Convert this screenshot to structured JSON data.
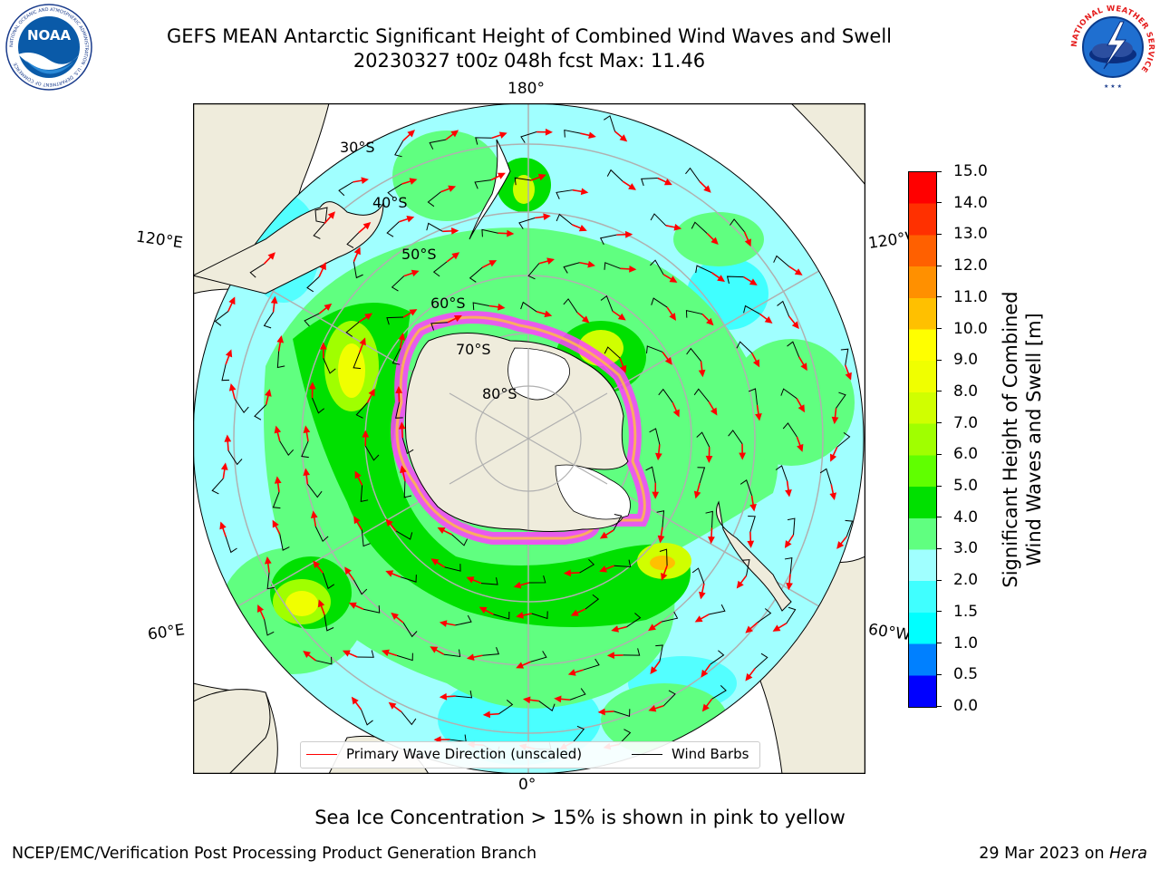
{
  "title_line1": "GEFS MEAN Antarctic Significant Height of Combined Wind Waves and Swell",
  "title_line2": "20230327 t00z 048h fcst   Max: 11.46",
  "logos": {
    "left_text": "NOAA",
    "left_ring": "NATIONAL OCEANIC AND ATMOSPHERIC ADMINISTRATION · U.S. DEPARTMENT OF COMMERCE",
    "right_ring": "NATIONAL WEATHER SERVICE"
  },
  "map": {
    "lon_labels": {
      "top": "180°",
      "bottom": "0°",
      "upper_left": "120°E",
      "lower_left": "60°E",
      "upper_right": "120°W",
      "lower_right": "60°W"
    },
    "lat_labels": [
      "30°S",
      "40°S",
      "50°S",
      "60°S",
      "70°S",
      "80°S"
    ]
  },
  "legend": {
    "wave": "Primary Wave Direction (unscaled)",
    "barb": "Wind Barbs",
    "wave_color": "#ff0000",
    "barb_color": "#000000"
  },
  "colorbar": {
    "label_line1": "Significant Height of Combined",
    "label_line2": "Wind Waves and Swell [m]",
    "ticks": [
      "15.0",
      "14.0",
      "13.0",
      "12.0",
      "11.0",
      "10.0",
      "9.0",
      "8.0",
      "7.0",
      "6.0",
      "5.0",
      "4.0",
      "3.0",
      "2.0",
      "1.5",
      "1.0",
      "0.5",
      "0.0"
    ],
    "colors_bottom_to_top": [
      "#0000ff",
      "#0080ff",
      "#00ffff",
      "#40ffff",
      "#a0ffff",
      "#60ff80",
      "#00e000",
      "#60ff00",
      "#a0ff00",
      "#d0ff00",
      "#f0ff00",
      "#ffff00",
      "#ffc000",
      "#ff9000",
      "#ff6000",
      "#ff3000",
      "#ff0000"
    ]
  },
  "ice_note": "Sea Ice Concentration > 15% is shown in pink to yellow",
  "footer": {
    "left": "NCEP/EMC/Verification Post Processing Product Generation Branch",
    "right_date": "29 Mar 2023 on",
    "right_host": "Hera"
  }
}
